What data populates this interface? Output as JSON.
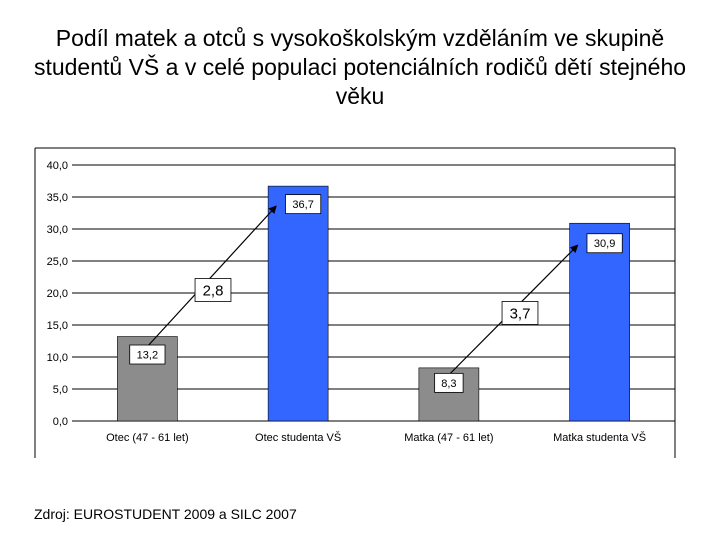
{
  "title": "Podíl matek a otců s vysokoškolským vzděláním ve skupině studentů VŠ a v celé populaci potenciálních rodičů dětí stejného věku",
  "source": "Zdroj: EUROSTUDENT 2009 a SILC 2007",
  "colors": {
    "population": "#8c8c8c",
    "students": "#3366ff",
    "grid": "#000000"
  },
  "chart_data": {
    "type": "bar",
    "categories": [
      "Otec (47 - 61 let)",
      "Otec studenta VŠ",
      "Matka (47 - 61 let)",
      "Matka studenta VŠ"
    ],
    "values": [
      13.2,
      36.7,
      8.3,
      30.9
    ],
    "value_labels": [
      "13,2",
      "36,7",
      "8,3",
      "30,9"
    ],
    "bar_colors": [
      "#8c8c8c",
      "#3366ff",
      "#8c8c8c",
      "#3366ff"
    ],
    "ylim": [
      0,
      40
    ],
    "yticks": [
      "0,0",
      "5,0",
      "10,0",
      "15,0",
      "20,0",
      "25,0",
      "30,0",
      "35,0",
      "40,0"
    ],
    "grid": true,
    "annotations": [
      {
        "text": "2,8",
        "from_category": 0,
        "to_category": 1
      },
      {
        "text": "3,7",
        "from_category": 2,
        "to_category": 3
      }
    ]
  }
}
